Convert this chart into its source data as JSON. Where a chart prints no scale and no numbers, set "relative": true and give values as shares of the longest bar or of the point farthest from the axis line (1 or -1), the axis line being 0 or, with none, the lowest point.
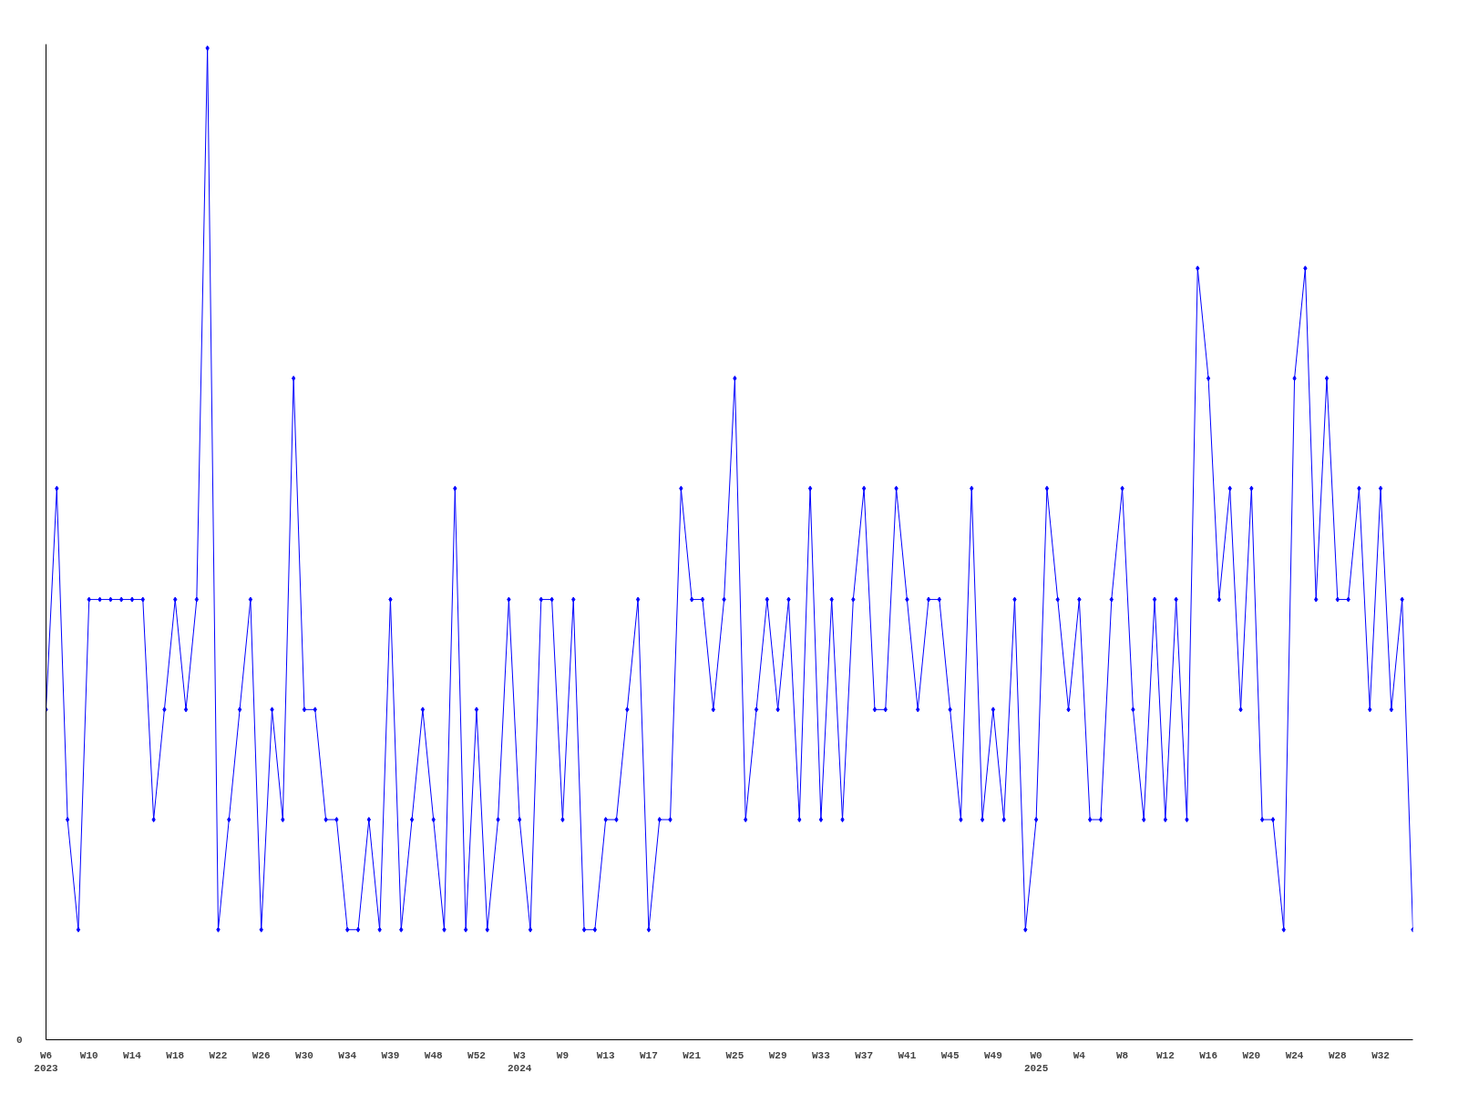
{
  "chart_data": {
    "type": "line",
    "relative": true,
    "marker": "diamond",
    "line_style": "solid",
    "grid": false,
    "categories": [
      "W6\n2023",
      null,
      null,
      null,
      "W10",
      null,
      null,
      null,
      "W14",
      null,
      null,
      null,
      "W18",
      null,
      null,
      null,
      "W22",
      null,
      null,
      null,
      "W26",
      null,
      null,
      null,
      "W30",
      null,
      null,
      null,
      "W34",
      null,
      null,
      null,
      "W39",
      null,
      null,
      null,
      "W48",
      null,
      null,
      null,
      "W52",
      null,
      null,
      null,
      "W3\n2024",
      null,
      null,
      null,
      "W9",
      null,
      null,
      null,
      "W13",
      null,
      null,
      null,
      "W17",
      null,
      null,
      null,
      "W21",
      null,
      null,
      null,
      "W25",
      null,
      null,
      null,
      "W29",
      null,
      null,
      null,
      "W33",
      null,
      null,
      null,
      "W37",
      null,
      null,
      null,
      "W41",
      null,
      null,
      null,
      "W45",
      null,
      null,
      null,
      "W49",
      null,
      null,
      null,
      "W0\n2025",
      null,
      null,
      null,
      "W4",
      null,
      null,
      null,
      "W8",
      null,
      null,
      null,
      "W12",
      null,
      null,
      null,
      "W16",
      null,
      null,
      null,
      "W20",
      null,
      null,
      null,
      "W24",
      null,
      null,
      null,
      "W28",
      null,
      null,
      null,
      "W32",
      null,
      null,
      null
    ],
    "series": [
      {
        "color": "#0000ff",
        "values": [
          0.333,
          0.556,
          0.222,
          0.111,
          0.444,
          0.444,
          0.444,
          0.444,
          0.444,
          0.444,
          0.222,
          0.333,
          0.444,
          0.333,
          0.444,
          1,
          0.111,
          0.222,
          0.333,
          0.444,
          0.111,
          0.333,
          0.222,
          0.667,
          0.333,
          0.333,
          0.222,
          0.222,
          0.111,
          0.111,
          0.222,
          0.111,
          0.444,
          0.111,
          0.222,
          0.333,
          0.222,
          0.111,
          0.556,
          0.111,
          0.333,
          0.111,
          0.222,
          0.444,
          0.222,
          0.111,
          0.444,
          0.444,
          0.222,
          0.444,
          0.111,
          0.111,
          0.222,
          0.222,
          0.333,
          0.444,
          0.111,
          0.222,
          0.222,
          0.556,
          0.444,
          0.444,
          0.333,
          0.444,
          0.667,
          0.222,
          0.333,
          0.444,
          0.333,
          0.444,
          0.222,
          0.556,
          0.222,
          0.444,
          0.222,
          0.444,
          0.556,
          0.333,
          0.333,
          0.556,
          0.444,
          0.333,
          0.444,
          0.444,
          0.333,
          0.222,
          0.556,
          0.222,
          0.333,
          0.222,
          0.444,
          0.111,
          0.222,
          0.556,
          0.444,
          0.333,
          0.444,
          0.222,
          0.222,
          0.444,
          0.556,
          0.333,
          0.222,
          0.444,
          0.222,
          0.444,
          0.222,
          0.778,
          0.667,
          0.444,
          0.556,
          0.333,
          0.556,
          0.222,
          0.222,
          0.111,
          0.667,
          0.778,
          0.444,
          0.667,
          0.444,
          0.444,
          0.556,
          0.333,
          0.556,
          0.333,
          0.444,
          0.111
        ]
      }
    ],
    "annotations": [
      "0"
    ]
  }
}
